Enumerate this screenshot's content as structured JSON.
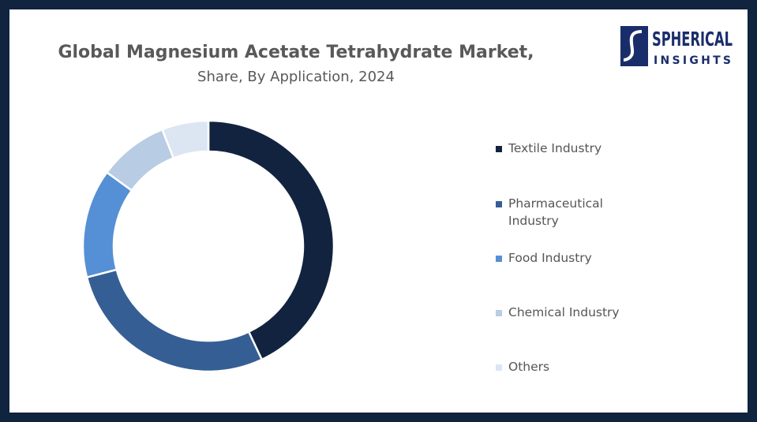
{
  "chart_data": {
    "type": "donut",
    "title": "Global Magnesium Acetate Tetrahydrate Market,",
    "subtitle": "Share, By Application, 2024",
    "categories": [
      "Textile Industry",
      "Pharmaceutical Industry",
      "Food Industry",
      "Chemical Industry",
      "Others"
    ],
    "values": [
      43,
      28,
      14,
      9,
      6
    ],
    "colors": [
      "#12233f",
      "#355f94",
      "#5590d6",
      "#b8cce4",
      "#dce6f2"
    ],
    "legend": "right"
  },
  "logo": {
    "name": "SPHERICAL",
    "tagline": "INSIGHTS"
  }
}
